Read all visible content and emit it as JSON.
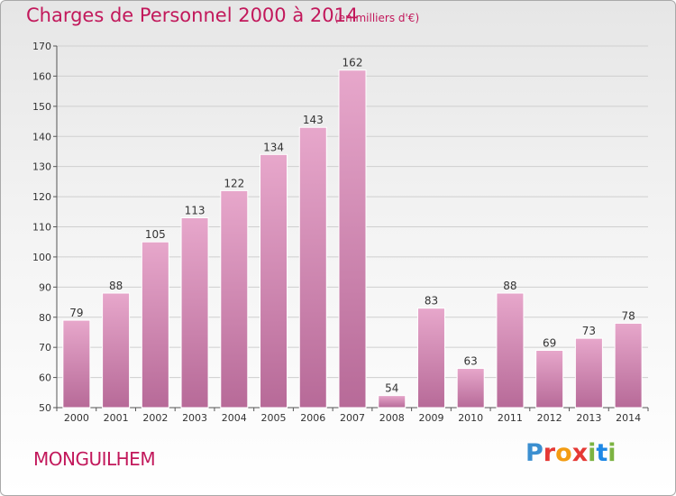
{
  "header": {
    "title": "Charges de Personnel 2000 à 2014",
    "subtitle": "(en milliers d'€)"
  },
  "footer": {
    "commune": "MONGUILHEM",
    "logo_text": "Proxiti"
  },
  "colors": {
    "bar_top": "#e7a7cb",
    "bar_bottom": "#b76a98",
    "bar_border": "#ffffff",
    "title": "#c2185b"
  },
  "chart_data": {
    "type": "bar",
    "title": "Charges de Personnel 2000 à 2014",
    "subtitle": "(en milliers d'€)",
    "categories": [
      "2000",
      "2001",
      "2002",
      "2003",
      "2004",
      "2005",
      "2006",
      "2007",
      "2008",
      "2009",
      "2010",
      "2011",
      "2012",
      "2013",
      "2014"
    ],
    "values": [
      79,
      88,
      105,
      113,
      122,
      134,
      143,
      162,
      54,
      83,
      63,
      88,
      69,
      73,
      78
    ],
    "xlabel": "",
    "ylabel": "",
    "ylim": [
      50,
      170
    ],
    "yticks": [
      50,
      60,
      70,
      80,
      90,
      100,
      110,
      120,
      130,
      140,
      150,
      160,
      170
    ],
    "grid": true
  }
}
